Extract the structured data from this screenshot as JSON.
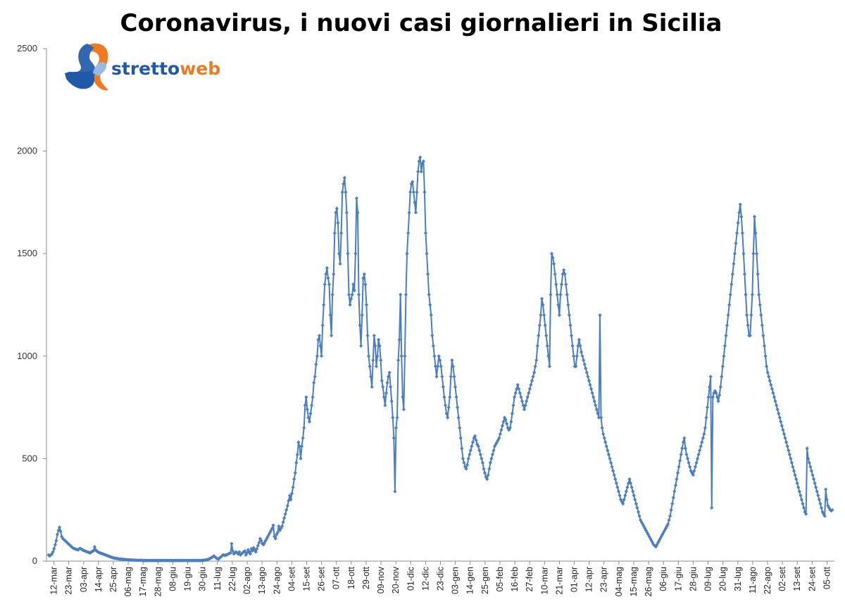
{
  "colors": {
    "series": "#4a7ebf",
    "logo_blue": "#1f5aa8",
    "logo_orange": "#f07a22"
  },
  "logo": {
    "part1": "stretto",
    "part2": "web"
  },
  "chart_data": {
    "type": "line",
    "title": "Coronavirus, i nuovi casi giornalieri in Sicilia",
    "xlabel": "",
    "ylabel": "",
    "ylim": [
      0,
      2500
    ],
    "y_ticks": [
      0,
      500,
      1000,
      1500,
      2000,
      2500
    ],
    "x_tick_labels": [
      "12-mar",
      "23-mar",
      "03-apr",
      "14-apr",
      "25-apr",
      "06-mag",
      "17-mag",
      "28-mag",
      "08-giu",
      "19-giu",
      "30-giu",
      "11-lug",
      "22-lug",
      "02-ago",
      "13-ago",
      "24-ago",
      "04-set",
      "15-set",
      "26-set",
      "07-ott",
      "18-ott",
      "29-ott",
      "09-nov",
      "20-nov",
      "01-dic",
      "12-dic",
      "23-dic",
      "03-gen",
      "14-gen",
      "25-gen",
      "05-feb",
      "16-feb",
      "27-feb",
      "10-mar",
      "21-mar",
      "01-apr",
      "12-apr",
      "23-apr",
      "04-mag",
      "15-mag",
      "26-mag",
      "06-giu",
      "17-giu",
      "28-giu",
      "09-lug",
      "20-lug",
      "31-lug",
      "11-ago",
      "22-ago",
      "02-set",
      "13-set",
      "24-set",
      "05-ott"
    ],
    "grid": false,
    "legend": "none",
    "series": [
      {
        "name": "",
        "values": [
          30,
          25,
          30,
          35,
          45,
          60,
          80,
          100,
          130,
          150,
          165,
          145,
          120,
          110,
          105,
          100,
          95,
          90,
          85,
          80,
          75,
          70,
          65,
          62,
          60,
          58,
          56,
          55,
          60,
          62,
          58,
          55,
          52,
          50,
          48,
          45,
          44,
          42,
          40,
          45,
          48,
          50,
          70,
          55,
          48,
          45,
          42,
          40,
          38,
          36,
          34,
          32,
          30,
          28,
          26,
          24,
          22,
          20,
          18,
          16,
          15,
          14,
          13,
          12,
          11,
          10,
          10,
          9,
          9,
          8,
          8,
          7,
          7,
          6,
          6,
          6,
          5,
          5,
          5,
          5,
          4,
          4,
          4,
          4,
          4,
          4,
          3,
          3,
          3,
          3,
          3,
          3,
          3,
          3,
          3,
          3,
          3,
          3,
          3,
          3,
          3,
          3,
          3,
          3,
          3,
          3,
          3,
          3,
          3,
          3,
          3,
          3,
          3,
          3,
          3,
          3,
          3,
          3,
          3,
          3,
          3,
          3,
          3,
          3,
          3,
          3,
          3,
          3,
          3,
          3,
          3,
          3,
          3,
          3,
          3,
          3,
          3,
          3,
          3,
          3,
          4,
          4,
          5,
          5,
          6,
          8,
          10,
          12,
          15,
          18,
          22,
          25,
          20,
          15,
          12,
          10,
          15,
          20,
          25,
          30,
          30,
          28,
          30,
          32,
          35,
          38,
          40,
          85,
          50,
          35,
          40,
          45,
          40,
          35,
          45,
          30,
          35,
          40,
          45,
          50,
          30,
          40,
          55,
          45,
          35,
          60,
          50,
          65,
          55,
          45,
          60,
          75,
          90,
          110,
          100,
          85,
          80,
          90,
          100,
          110,
          120,
          130,
          140,
          150,
          160,
          175,
          120,
          110,
          130,
          140,
          170,
          150,
          160,
          170,
          190,
          210,
          230,
          250,
          270,
          295,
          320,
          300,
          330,
          360,
          400,
          430,
          480,
          520,
          580,
          560,
          500,
          560,
          600,
          650,
          760,
          800,
          740,
          700,
          680,
          720,
          760,
          800,
          870,
          900,
          960,
          1000,
          1080,
          1100,
          1050,
          1000,
          1150,
          1250,
          1350,
          1400,
          1430,
          1380,
          1350,
          1200,
          1100,
          1300,
          1400,
          1600,
          1700,
          1720,
          1650,
          1500,
          1450,
          1600,
          1800,
          1840,
          1870,
          1800,
          1700,
          1500,
          1300,
          1250,
          1280,
          1300,
          1350,
          1320,
          1500,
          1770,
          1700,
          1300,
          1150,
          1050,
          1200,
          1380,
          1400,
          1350,
          1250,
          1100,
          1000,
          950,
          900,
          850,
          980,
          1100,
          1050,
          950,
          1000,
          1080,
          1050,
          980,
          880,
          850,
          800,
          760,
          820,
          870,
          900,
          920,
          850,
          780,
          700,
          600,
          340,
          650,
          700,
          980,
          1080,
          1300,
          1000,
          800,
          740,
          1000,
          1300,
          1500,
          1600,
          1700,
          1800,
          1840,
          1850,
          1800,
          1750,
          1700,
          1800,
          1900,
          1950,
          1970,
          1900,
          1940,
          1950,
          1800,
          1600,
          1500,
          1400,
          1300,
          1250,
          1200,
          1100,
          1050,
          1000,
          950,
          900,
          950,
          1000,
          980,
          950,
          900,
          850,
          800,
          760,
          720,
          700,
          750,
          800,
          900,
          980,
          950,
          900,
          850,
          800,
          750,
          700,
          650,
          600,
          550,
          500,
          480,
          460,
          450,
          470,
          500,
          520,
          540,
          560,
          580,
          600,
          610,
          590,
          570,
          560,
          540,
          520,
          500,
          480,
          450,
          430,
          410,
          400,
          420,
          450,
          480,
          500,
          520,
          540,
          560,
          570,
          580,
          590,
          600,
          620,
          640,
          660,
          680,
          700,
          690,
          670,
          650,
          640,
          650,
          680,
          720,
          760,
          800,
          820,
          840,
          860,
          840,
          820,
          800,
          780,
          760,
          740,
          760,
          780,
          800,
          820,
          840,
          860,
          880,
          900,
          920,
          950,
          980,
          1050,
          1100,
          1150,
          1200,
          1280,
          1250,
          1200,
          1150,
          1100,
          1050,
          1000,
          950,
          1300,
          1500,
          1480,
          1450,
          1400,
          1350,
          1300,
          1250,
          1200,
          1300,
          1350,
          1400,
          1420,
          1400,
          1350,
          1300,
          1250,
          1200,
          1150,
          1100,
          1050,
          1000,
          950,
          950,
          1000,
          1050,
          1080,
          1050,
          1020,
          1000,
          980,
          960,
          940,
          920,
          900,
          880,
          860,
          840,
          820,
          800,
          780,
          760,
          740,
          720,
          700,
          1200,
          700,
          650,
          620,
          600,
          580,
          560,
          540,
          520,
          500,
          480,
          460,
          440,
          420,
          400,
          380,
          360,
          340,
          320,
          300,
          290,
          280,
          300,
          320,
          340,
          360,
          380,
          400,
          380,
          360,
          340,
          320,
          300,
          280,
          260,
          240,
          220,
          200,
          190,
          180,
          170,
          160,
          150,
          140,
          130,
          120,
          110,
          100,
          90,
          80,
          75,
          70,
          80,
          90,
          100,
          110,
          120,
          130,
          140,
          150,
          160,
          170,
          180,
          200,
          220,
          250,
          280,
          310,
          340,
          370,
          400,
          430,
          460,
          490,
          520,
          550,
          580,
          600,
          550,
          520,
          500,
          480,
          460,
          440,
          430,
          420,
          440,
          460,
          480,
          500,
          520,
          540,
          560,
          580,
          600,
          620,
          650,
          700,
          750,
          800,
          850,
          900,
          260,
          800,
          820,
          830,
          820,
          800,
          780,
          810,
          850,
          900,
          950,
          1000,
          1050,
          1100,
          1150,
          1200,
          1250,
          1300,
          1350,
          1400,
          1450,
          1500,
          1550,
          1600,
          1650,
          1700,
          1740,
          1680,
          1600,
          1500,
          1400,
          1300,
          1200,
          1150,
          1100,
          1100,
          1200,
          1300,
          1500,
          1680,
          1600,
          1500,
          1400,
          1300,
          1250,
          1200,
          1150,
          1100,
          1050,
          1000,
          950,
          920,
          900,
          880,
          860,
          840,
          820,
          800,
          780,
          760,
          740,
          720,
          700,
          680,
          660,
          640,
          620,
          600,
          580,
          560,
          540,
          520,
          500,
          480,
          460,
          440,
          420,
          400,
          380,
          360,
          340,
          320,
          300,
          280,
          260,
          240,
          230,
          550,
          500,
          480,
          460,
          440,
          420,
          400,
          380,
          360,
          340,
          320,
          300,
          280,
          260,
          240,
          230,
          220,
          350,
          300,
          270,
          260,
          250,
          245,
          250
        ]
      }
    ]
  }
}
